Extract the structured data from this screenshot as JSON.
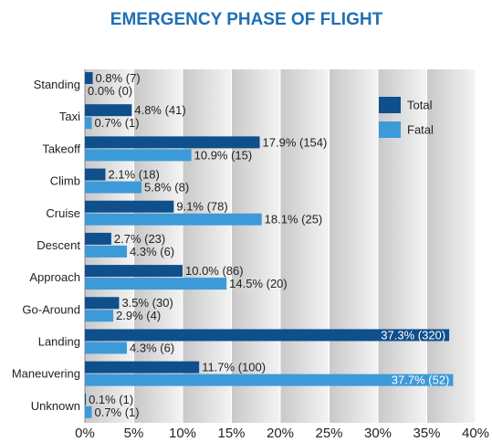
{
  "chart_data": {
    "type": "bar",
    "orientation": "horizontal",
    "title": "EMERGENCY PHASE OF FLIGHT",
    "categories": [
      "Standing",
      "Taxi",
      "Takeoff",
      "Climb",
      "Cruise",
      "Descent",
      "Approach",
      "Go-Around",
      "Landing",
      "Maneuvering",
      "Unknown"
    ],
    "series": [
      {
        "name": "Total",
        "color": "#0f4f8c",
        "values": [
          0.8,
          4.8,
          17.9,
          2.1,
          9.1,
          2.7,
          10.0,
          3.5,
          37.3,
          11.7,
          0.1
        ],
        "value_labels": [
          "0.8% (7)",
          "4.8% (41)",
          "17.9% (154)",
          "2.1% (18)",
          "9.1% (78)",
          "2.7% (23)",
          "10.0% (86)",
          "3.5% (30)",
          "37.3% (320)",
          "11.7% (100)",
          "0.1% (1)"
        ]
      },
      {
        "name": "Fatal",
        "color": "#3d9ad8",
        "values": [
          0.0,
          0.7,
          10.9,
          5.8,
          18.1,
          4.3,
          14.5,
          2.9,
          4.3,
          37.7,
          0.7
        ],
        "value_labels": [
          "0.0% (0)",
          "0.7% (1)",
          "10.9% (15)",
          "5.8% (8)",
          "18.1% (25)",
          "4.3% (6)",
          "14.5% (20)",
          "2.9% (4)",
          "4.3% (6)",
          "37.7% (52)",
          "0.7% (1)"
        ]
      }
    ],
    "xlim": [
      0,
      40
    ],
    "xticks": [
      {
        "value": 0,
        "label": "0%"
      },
      {
        "value": 5,
        "label": "5%"
      },
      {
        "value": 10,
        "label": "10%"
      },
      {
        "value": 15,
        "label": "15%"
      },
      {
        "value": 20,
        "label": "20%"
      },
      {
        "value": 25,
        "label": "25%"
      },
      {
        "value": 30,
        "label": "30%"
      },
      {
        "value": 35,
        "label": "35%"
      },
      {
        "value": 40,
        "label": "40%"
      }
    ],
    "grid": true,
    "legend": "top-right"
  }
}
